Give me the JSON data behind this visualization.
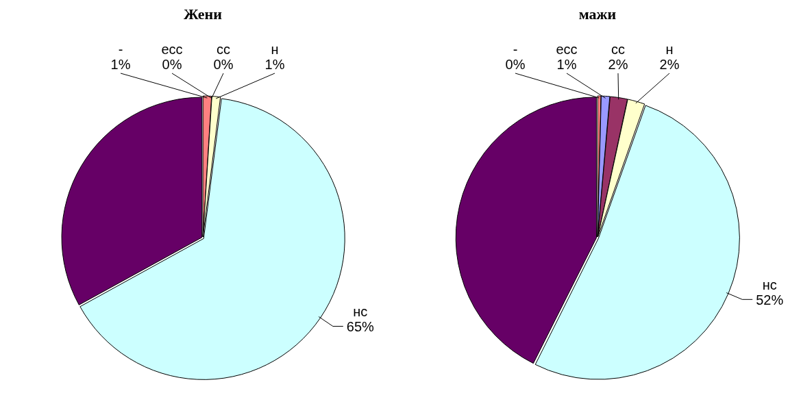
{
  "chart_data": [
    {
      "type": "pie",
      "title": "Жени",
      "categories": [
        "-",
        "есс",
        "сс",
        "н",
        "нс",
        null
      ],
      "values": [
        1,
        0,
        0,
        1,
        65,
        33
      ],
      "colors": [
        "#ff8080",
        "#9999ff",
        "#993366",
        "#ffffcc",
        "#ccffff",
        "#660066"
      ],
      "value_labels": [
        "1%",
        "0%",
        "0%",
        "1%",
        "65%",
        null
      ],
      "legend": false
    },
    {
      "type": "pie",
      "title": "мажи",
      "categories": [
        "-",
        "есс",
        "сс",
        "н",
        "нс",
        null
      ],
      "values": [
        0.4,
        1,
        2,
        2,
        52,
        42.6
      ],
      "colors": [
        "#ff8080",
        "#9999ff",
        "#993366",
        "#ffffcc",
        "#ccffff",
        "#660066"
      ],
      "value_labels": [
        "0%",
        "1%",
        "2%",
        "2%",
        "52%",
        null
      ],
      "legend": false
    }
  ]
}
